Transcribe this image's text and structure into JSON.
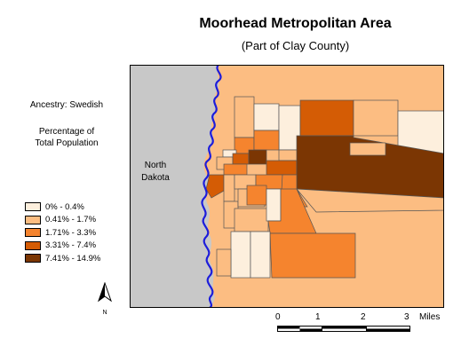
{
  "map": {
    "title": "Moorhead Metropolitan Area",
    "subtitle": "(Part of Clay County)"
  },
  "sidebar": {
    "ancestry_label": "Ancestry: Swedish",
    "measure_line1": "Percentage of",
    "measure_line2": "Total Population"
  },
  "area_label": {
    "line1": "North",
    "line2": "Dakota"
  },
  "legend": {
    "items": [
      {
        "label": "0% - 0.4%",
        "color": "#fdefdd"
      },
      {
        "label": "0.41% - 1.7%",
        "color": "#fcbd82"
      },
      {
        "label": "1.71% - 3.3%",
        "color": "#f5842e"
      },
      {
        "label": "3.31% - 7.4%",
        "color": "#d45c05"
      },
      {
        "label": "7.41% - 14.9%",
        "color": "#7b3603"
      }
    ]
  },
  "scale": {
    "ticks": [
      "0",
      "1",
      "2",
      "3"
    ],
    "unit": "Miles"
  },
  "north_arrow": {
    "label": "N"
  },
  "colors": {
    "neighbor_state": "#c8c8c8",
    "river": "#1d1ddb",
    "border": "#000000"
  }
}
